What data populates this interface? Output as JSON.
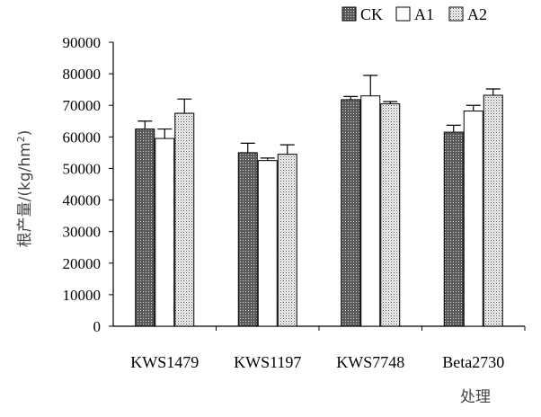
{
  "chart_data": {
    "type": "bar",
    "title": "",
    "xlabel": "处理",
    "ylabel": "根产量/(kg/hm²)",
    "ylabel_parts": {
      "prefix": "根产量/(kg/hm",
      "sup": "2",
      "suffix": ")"
    },
    "ylim": [
      0,
      90000
    ],
    "yticks": [
      0,
      10000,
      20000,
      30000,
      40000,
      50000,
      60000,
      70000,
      80000,
      90000
    ],
    "ytick_labels": [
      "0",
      "10000",
      "20000",
      "30000",
      "40000",
      "50000",
      "60000",
      "70000",
      "80000",
      "90000"
    ],
    "categories": [
      "KWS1479",
      "KWS1197",
      "KWS7748",
      "Beta2730"
    ],
    "legend_position": "top-right",
    "grid": false,
    "series": [
      {
        "name": "CK",
        "values": [
          62500,
          55000,
          71800,
          61500
        ],
        "errors": [
          2500,
          3000,
          1000,
          2200
        ],
        "fill": "dark-grey-dotted"
      },
      {
        "name": "A1",
        "values": [
          59500,
          52500,
          73000,
          68200
        ],
        "errors": [
          3000,
          800,
          6500,
          1800
        ],
        "fill": "white"
      },
      {
        "name": "A2",
        "values": [
          67500,
          54500,
          70500,
          73200
        ],
        "errors": [
          4500,
          3000,
          700,
          2000
        ],
        "fill": "light-grey-dotted"
      }
    ]
  }
}
